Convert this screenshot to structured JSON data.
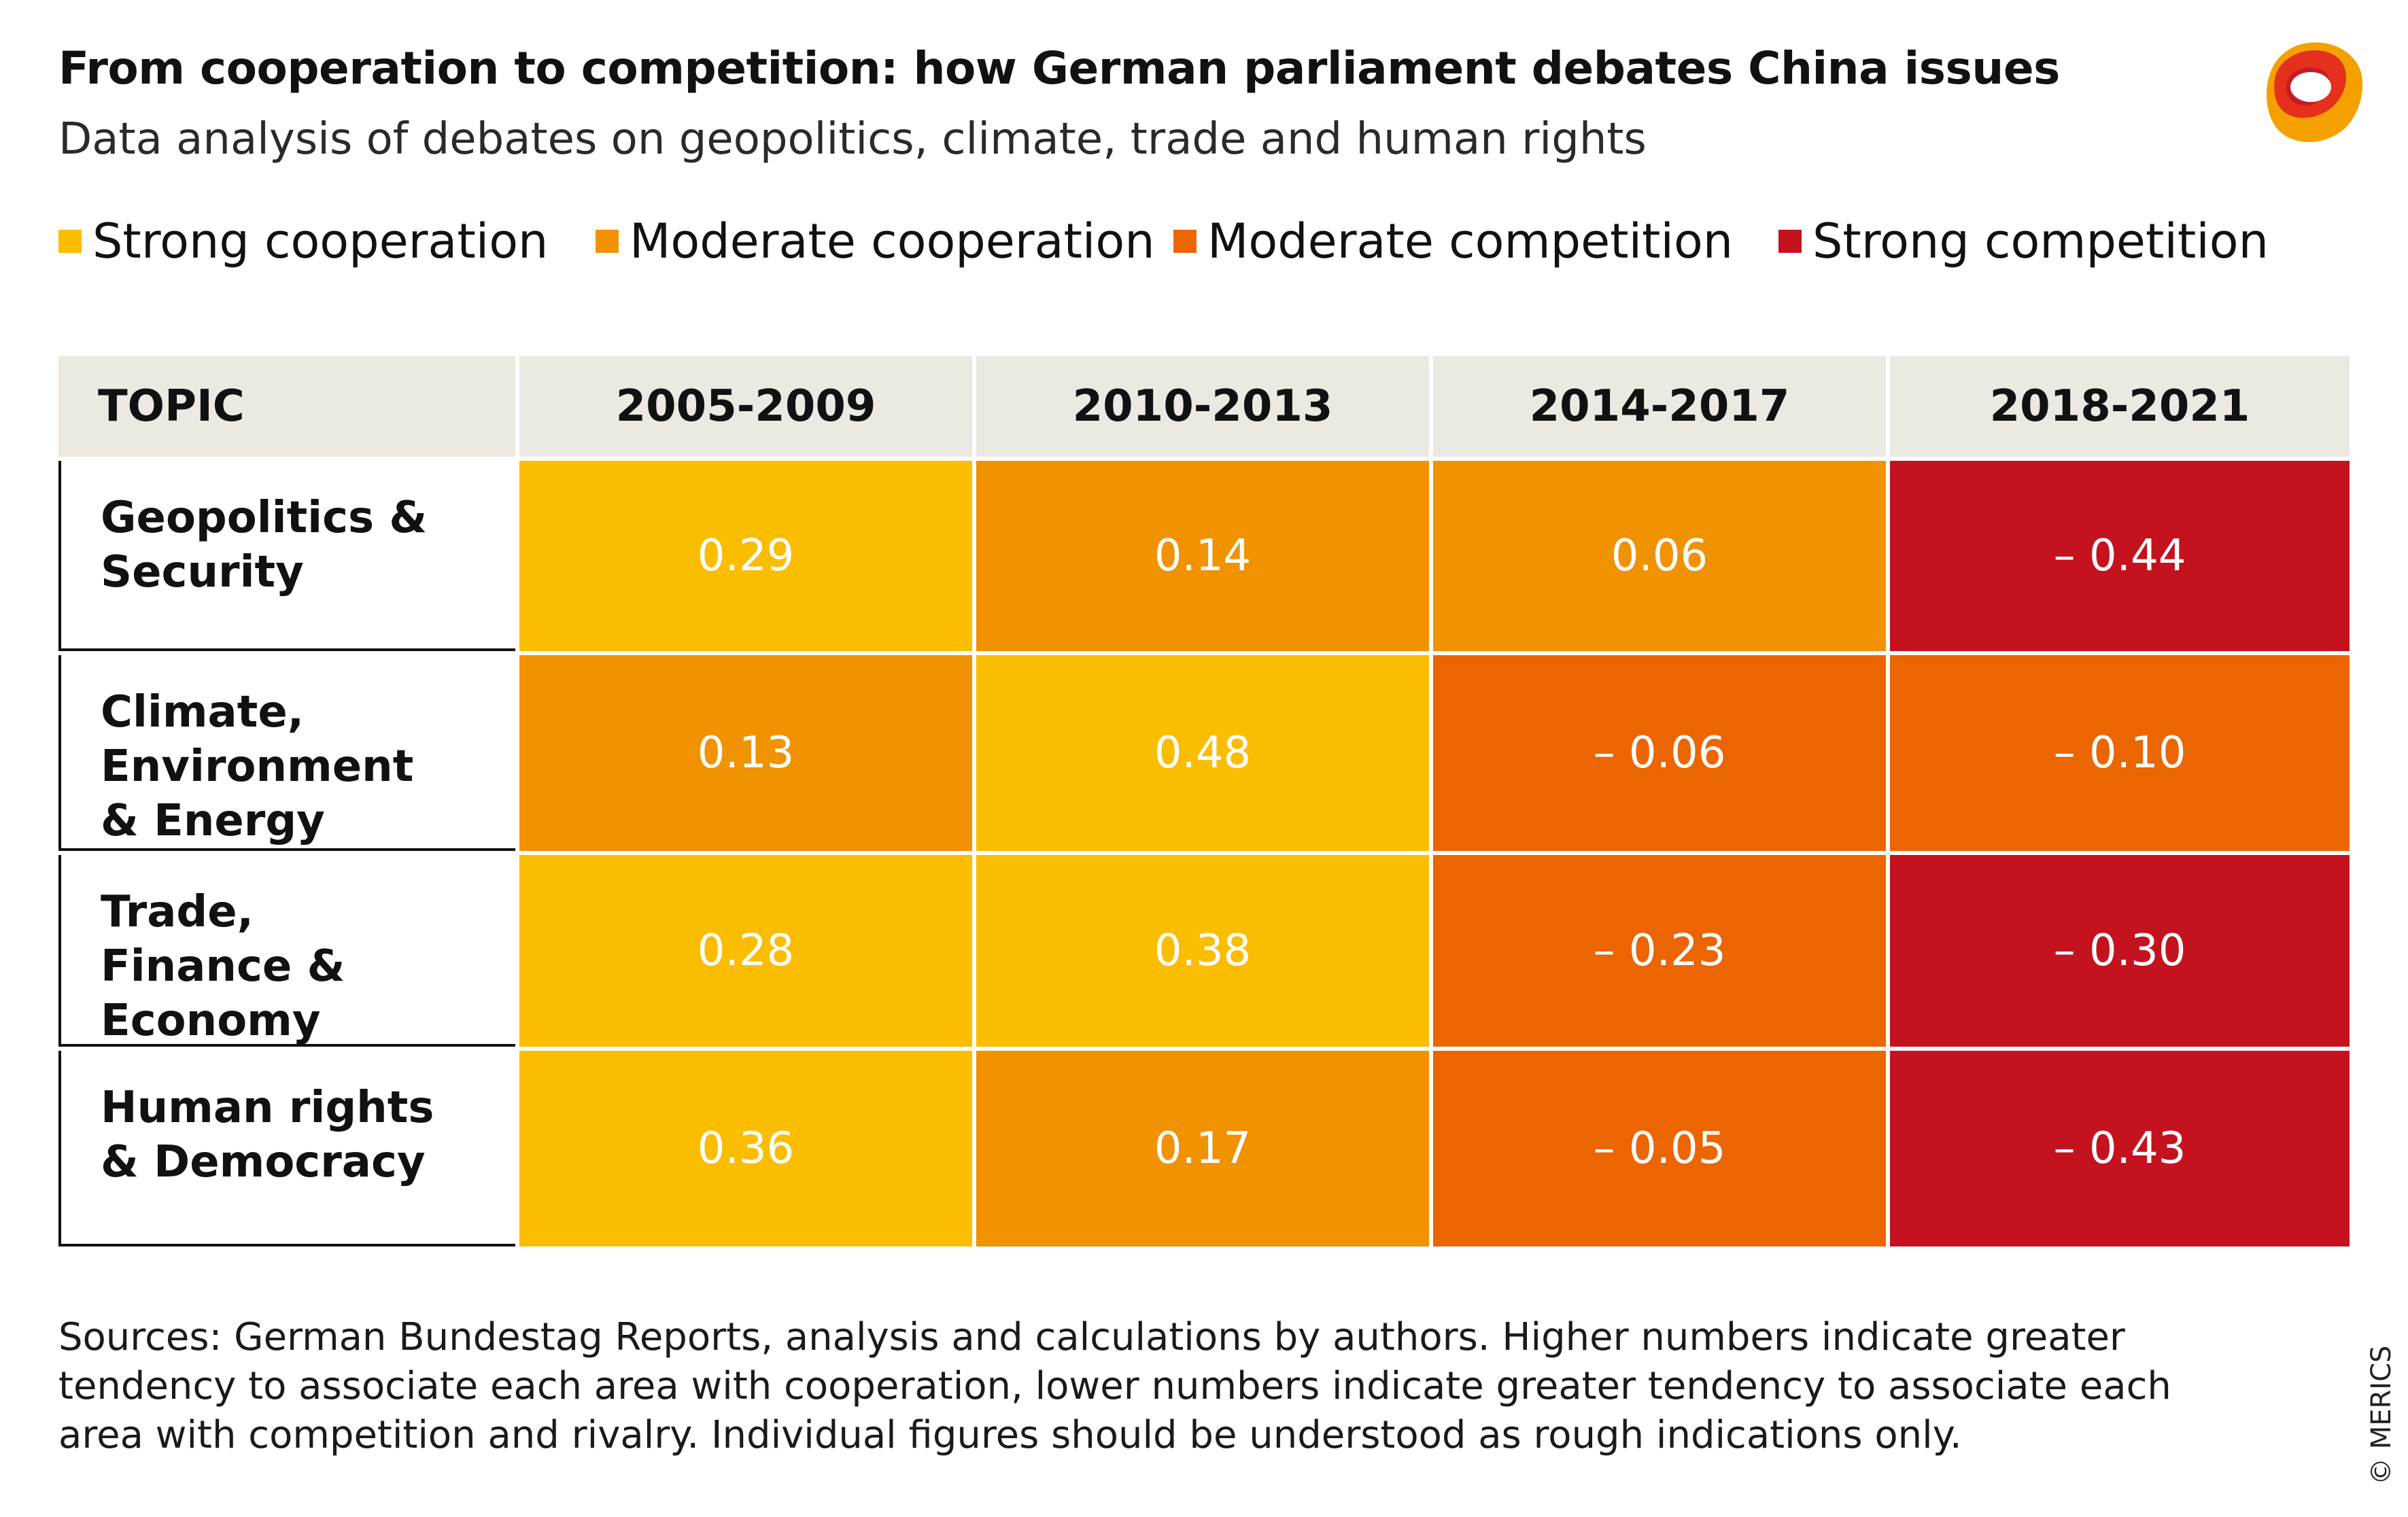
{
  "header": {
    "title": "From cooperation to competition: how German parliament debates China issues",
    "subtitle": "Data analysis of debates on geopolitics, climate, trade and human rights"
  },
  "logo": {
    "icon": "merics-logo-icon",
    "colors": [
      "#f4a100",
      "#e5301b",
      "#c81a23"
    ]
  },
  "legend": [
    {
      "label": "Strong cooperation",
      "color": "#fbbd00"
    },
    {
      "label": "Moderate cooperation",
      "color": "#f19200"
    },
    {
      "label": "Moderate competition",
      "color": "#eb6500"
    },
    {
      "label": "Strong competition",
      "color": "#c5121f"
    }
  ],
  "chart_data": {
    "type": "table",
    "columns": [
      "TOPIC",
      "2005-2009",
      "2010-2013",
      "2014-2017",
      "2018-2021"
    ],
    "rows": [
      {
        "topic": "Geopolitics & Security",
        "values": [
          "0.29",
          "0.14",
          "0.06",
          "– 0.44"
        ],
        "categories": [
          0,
          1,
          1,
          3
        ]
      },
      {
        "topic": "Climate, Environment & Energy",
        "values": [
          "0.13",
          "0.48",
          "– 0.06",
          "– 0.10"
        ],
        "categories": [
          1,
          0,
          2,
          2
        ]
      },
      {
        "topic": "Trade, Finance & Economy",
        "values": [
          "0.28",
          "0.38",
          "– 0.23",
          "– 0.30"
        ],
        "categories": [
          0,
          0,
          2,
          3
        ]
      },
      {
        "topic": "Human rights & Democracy",
        "values": [
          "0.36",
          "0.17",
          "– 0.05",
          "– 0.43"
        ],
        "categories": [
          0,
          1,
          2,
          3
        ]
      }
    ]
  },
  "footer": {
    "sources": "Sources: German Bundestag Reports, analysis and calculations by authors. Higher numbers indicate greater tendency to associate each area with cooperation, lower numbers indicate greater tendency to associate each area with competition and rivalry. Individual figures should be understood as rough indications only.",
    "copyright": "© MERICS"
  }
}
